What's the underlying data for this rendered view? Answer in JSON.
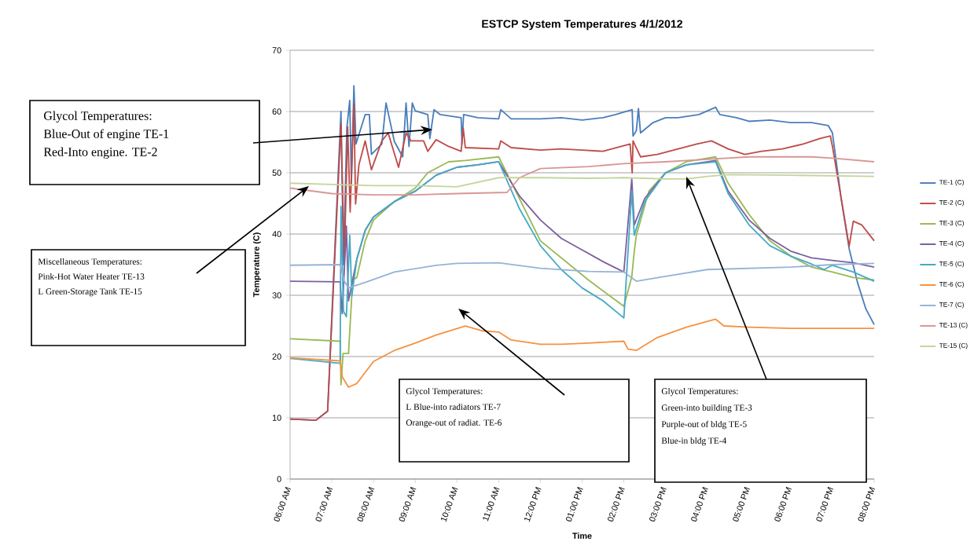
{
  "chart_data": {
    "type": "line",
    "title": "ESTCP System Temperatures  4/1/2012",
    "xlabel": "Time",
    "ylabel": "Temperature (C)",
    "xlim": [
      6,
      20
    ],
    "ylim": [
      0,
      70
    ],
    "yticks": [
      0,
      10,
      20,
      30,
      40,
      50,
      60,
      70
    ],
    "xticks": [
      {
        "value": 6,
        "label": "06:00 AM"
      },
      {
        "value": 7,
        "label": "07:00 AM"
      },
      {
        "value": 8,
        "label": "08:00 AM"
      },
      {
        "value": 9,
        "label": "09:00 AM"
      },
      {
        "value": 10,
        "label": "10:00 AM"
      },
      {
        "value": 11,
        "label": "11:00 AM"
      },
      {
        "value": 12,
        "label": "12:00 PM"
      },
      {
        "value": 13,
        "label": "01:00 PM"
      },
      {
        "value": 14,
        "label": "02:00 PM"
      },
      {
        "value": 15,
        "label": "03:00 PM"
      },
      {
        "value": 16,
        "label": "04:00 PM"
      },
      {
        "value": 17,
        "label": "05:00 PM"
      },
      {
        "value": 18,
        "label": "06:00 PM"
      },
      {
        "value": 19,
        "label": "07:00 PM"
      },
      {
        "value": 20,
        "label": "08:00 PM"
      }
    ],
    "grid": "y",
    "legend": "right",
    "series": [
      {
        "name": "TE-1 (C)",
        "color": "#4a7ebb",
        "x": [
          6.0,
          6.62,
          6.9,
          7.22,
          7.28,
          7.36,
          7.43,
          7.47,
          7.53,
          7.58,
          7.8,
          7.9,
          7.95,
          8.2,
          8.3,
          8.5,
          8.7,
          8.78,
          8.85,
          8.93,
          9.0,
          9.3,
          9.35,
          9.45,
          9.6,
          10.1,
          10.12,
          10.16,
          10.5,
          11.0,
          11.05,
          11.3,
          12.0,
          12.5,
          13.0,
          13.5,
          13.8,
          14.2,
          14.22,
          14.3,
          14.35,
          14.4,
          14.7,
          15.0,
          15.3,
          15.8,
          16.2,
          16.3,
          16.7,
          17.0,
          17.5,
          18.0,
          18.5,
          18.9,
          19.0,
          19.2,
          19.4,
          19.6,
          19.8,
          20.0
        ],
        "values": [
          9.8,
          9.6,
          11.1,
          60.0,
          35,
          57.3,
          61.8,
          48.3,
          64.2,
          54.7,
          59.5,
          59.5,
          53.0,
          54.7,
          61.4,
          55.1,
          52.6,
          61.4,
          54.3,
          61.4,
          60.1,
          59.5,
          55.6,
          60.3,
          59.5,
          59.0,
          54.7,
          59.5,
          59.0,
          58.8,
          60.3,
          58.8,
          58.8,
          59.0,
          58.6,
          59.0,
          59.5,
          60.3,
          56.0,
          56.9,
          60.5,
          56.5,
          58.2,
          59.0,
          59.0,
          59.5,
          60.7,
          59.5,
          59.0,
          58.4,
          58.6,
          58.2,
          58.2,
          57.7,
          56.5,
          46.2,
          37.6,
          32.1,
          27.8,
          25.2
        ]
      },
      {
        "name": "TE-2 (C)",
        "color": "#be4b48",
        "x": [
          6.0,
          6.62,
          6.9,
          7.22,
          7.3,
          7.38,
          7.44,
          7.53,
          7.57,
          7.65,
          7.8,
          7.95,
          8.2,
          8.35,
          8.6,
          8.78,
          8.9,
          9.2,
          9.3,
          9.5,
          9.8,
          10.1,
          10.15,
          10.2,
          11.0,
          11.05,
          11.3,
          12.0,
          12.5,
          13.0,
          13.5,
          14.15,
          14.2,
          14.22,
          14.4,
          14.8,
          15.3,
          15.75,
          16.1,
          16.5,
          16.9,
          17.3,
          17.8,
          18.3,
          18.7,
          18.95,
          19.0,
          19.2,
          19.4,
          19.5,
          19.7,
          20.0
        ],
        "values": [
          9.8,
          9.6,
          11.1,
          58.0,
          35.9,
          57.5,
          43.6,
          61.2,
          44.9,
          51.3,
          55.2,
          50.5,
          55.2,
          56.5,
          50.9,
          56.5,
          55.2,
          55.2,
          53.5,
          55.4,
          54.3,
          53.5,
          57.3,
          54.1,
          53.9,
          55.2,
          54.1,
          53.7,
          53.9,
          53.7,
          53.5,
          54.7,
          50.0,
          55.2,
          52.6,
          53.0,
          53.9,
          54.7,
          55.2,
          53.9,
          53.0,
          53.5,
          53.9,
          54.7,
          55.6,
          56.0,
          54.3,
          46.2,
          38.0,
          42.1,
          41.5,
          38.9
        ]
      },
      {
        "name": "TE-3 (C)",
        "color": "#98b954",
        "x": [
          6.0,
          7.2,
          7.22,
          7.27,
          7.4,
          7.5,
          7.6,
          7.8,
          8.0,
          8.5,
          9.0,
          9.3,
          9.8,
          10.2,
          11.0,
          12.0,
          13.15,
          14.0,
          14.19,
          14.25,
          14.3,
          14.6,
          15.0,
          15.5,
          16.2,
          16.5,
          17.0,
          17.5,
          18.0,
          18.5,
          19.0,
          19.5,
          20.0
        ],
        "values": [
          22.9,
          22.5,
          15.4,
          20.5,
          20.5,
          32.5,
          32.9,
          38.9,
          42.3,
          45.3,
          47.5,
          50.0,
          51.8,
          52.0,
          52.6,
          38.9,
          32.5,
          28.2,
          33.0,
          37.2,
          39.8,
          47.0,
          50.0,
          51.8,
          52.6,
          48.3,
          43.2,
          38.9,
          36.4,
          34.6,
          33.8,
          32.9,
          32.5
        ]
      },
      {
        "name": "TE-4 (C)",
        "color": "#7d60a0",
        "x": [
          6.0,
          7.2,
          7.25,
          7.35,
          7.4,
          7.6,
          7.8,
          8.0,
          8.5,
          9.0,
          9.5,
          10.0,
          10.5,
          11.0,
          11.5,
          12.0,
          12.5,
          13.0,
          13.5,
          14.0,
          14.19,
          14.25,
          14.5,
          15.0,
          15.5,
          16.2,
          16.5,
          17.0,
          17.5,
          18.0,
          18.5,
          19.0,
          19.5,
          20.0
        ],
        "values": [
          32.3,
          32.2,
          27.0,
          41.3,
          29.1,
          35.9,
          40.6,
          42.8,
          45.3,
          47.0,
          49.6,
          50.9,
          51.3,
          51.8,
          46.2,
          42.3,
          39.3,
          37.4,
          35.5,
          33.8,
          49.0,
          41.5,
          45.8,
          50.0,
          51.3,
          52.0,
          47.0,
          42.3,
          39.3,
          37.2,
          36.1,
          35.7,
          35.3,
          34.6
        ]
      },
      {
        "name": "TE-5 (C)",
        "color": "#46aac5",
        "x": [
          6.0,
          7.2,
          7.22,
          7.28,
          7.35,
          7.43,
          7.48,
          7.6,
          7.8,
          8.0,
          8.5,
          9.0,
          9.5,
          10.0,
          10.5,
          11.0,
          11.5,
          12.0,
          12.5,
          13.0,
          13.5,
          14.0,
          14.19,
          14.25,
          14.5,
          15.0,
          15.5,
          16.2,
          16.5,
          17.0,
          17.5,
          18.0,
          18.5,
          18.8,
          19.0,
          19.5,
          20.0
        ],
        "values": [
          19.7,
          18.9,
          44.5,
          27.4,
          26.5,
          39.8,
          29.9,
          35.9,
          40.6,
          42.8,
          45.3,
          47.0,
          49.6,
          50.9,
          51.3,
          51.8,
          44.1,
          38.1,
          34.2,
          31.2,
          29.1,
          26.3,
          47.0,
          39.8,
          45.3,
          50.0,
          51.3,
          51.8,
          46.6,
          41.5,
          38.1,
          36.4,
          35.1,
          34.2,
          34.9,
          33.8,
          32.3
        ]
      },
      {
        "name": "TE-6 (C)",
        "color": "#f69240",
        "x": [
          6.0,
          7.2,
          7.25,
          7.4,
          7.6,
          8.0,
          8.5,
          9.0,
          9.5,
          10.2,
          10.6,
          11.0,
          11.3,
          12.0,
          12.5,
          13.15,
          14.0,
          14.1,
          14.3,
          14.8,
          15.5,
          16.2,
          16.4,
          17.0,
          18.0,
          20.0
        ],
        "values": [
          19.8,
          19.3,
          16.7,
          15.0,
          15.6,
          19.2,
          21.0,
          22.2,
          23.5,
          25.0,
          24.2,
          24.0,
          22.7,
          22.0,
          22.0,
          22.2,
          22.5,
          21.2,
          21.0,
          23.1,
          24.8,
          26.1,
          25.0,
          24.8,
          24.6,
          24.6
        ]
      },
      {
        "name": "TE-7 (C)",
        "color": "#95b3d7",
        "x": [
          6.0,
          7.2,
          7.3,
          7.4,
          7.8,
          8.5,
          9.5,
          10.0,
          11.0,
          12.0,
          13.15,
          14.0,
          14.3,
          15.0,
          16.0,
          17.0,
          18.0,
          19.0,
          20.0
        ],
        "values": [
          34.9,
          35.0,
          32.3,
          31.2,
          32.1,
          33.8,
          34.9,
          35.2,
          35.3,
          34.4,
          33.9,
          33.8,
          32.3,
          33.1,
          34.2,
          34.4,
          34.6,
          35.0,
          35.2
        ]
      },
      {
        "name": "TE-13 (C)",
        "color": "#d99694",
        "x": [
          6.0,
          7.0,
          8.0,
          9.0,
          10.0,
          11.2,
          11.5,
          12.0,
          13.15,
          14.0,
          15.0,
          16.0,
          17.0,
          18.5,
          19.0,
          20.0
        ],
        "values": [
          47.5,
          46.6,
          46.4,
          46.4,
          46.6,
          46.8,
          49.2,
          50.7,
          51.0,
          51.5,
          51.8,
          52.2,
          52.6,
          52.6,
          52.4,
          51.8
        ]
      },
      {
        "name": "TE-15 (C)",
        "color": "#c3d69b",
        "x": [
          6.0,
          7.0,
          8.0,
          9.0,
          10.0,
          11.0,
          12.0,
          13.15,
          14.0,
          15.0,
          15.5,
          16.0,
          16.5,
          18.0,
          20.0
        ],
        "values": [
          48.3,
          48.1,
          47.9,
          47.9,
          47.7,
          49.2,
          49.2,
          49.1,
          49.2,
          49.0,
          49.0,
          49.4,
          49.7,
          49.6,
          49.4
        ]
      }
    ],
    "annotations": [
      "Glycol Temperatures:",
      "Blue-Out of engine TE-1",
      "Red-Into engine. TE-2",
      "Miscellaneous Temperatures:",
      "Pink-Hot Water Heater  TE-13",
      "L Green-Storage Tank TE-15",
      "Glycol Temperatures:",
      "L Blue-into radiators TE-7",
      "Orange-out of radiat. TE-6",
      "Glycol Temperatures:",
      "Green-into building TE-3",
      "Purple-out of bldg TE-5",
      "Blue-in bldg TE-4"
    ]
  }
}
